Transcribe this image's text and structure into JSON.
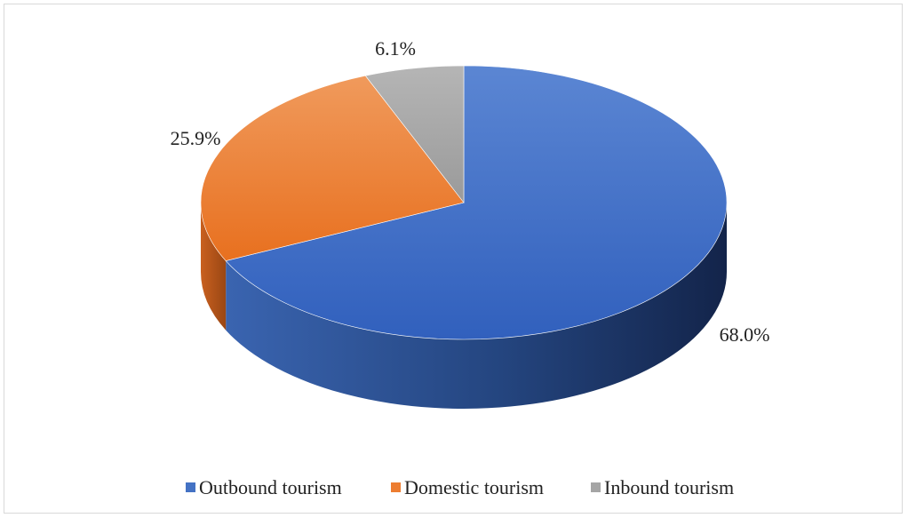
{
  "chart_data": {
    "type": "pie",
    "title": "",
    "slices": [
      {
        "label": "Outbound tourism",
        "value": 68.0,
        "display": "68.0%",
        "color": "#4472c4"
      },
      {
        "label": "Domestic tourism",
        "value": 25.9,
        "display": "25.9%",
        "color": "#ed7d31"
      },
      {
        "label": "Inbound tourism",
        "value": 6.1,
        "display": "6.1%",
        "color": "#a5a5a5"
      }
    ],
    "style": "3d",
    "legend_position": "bottom"
  }
}
